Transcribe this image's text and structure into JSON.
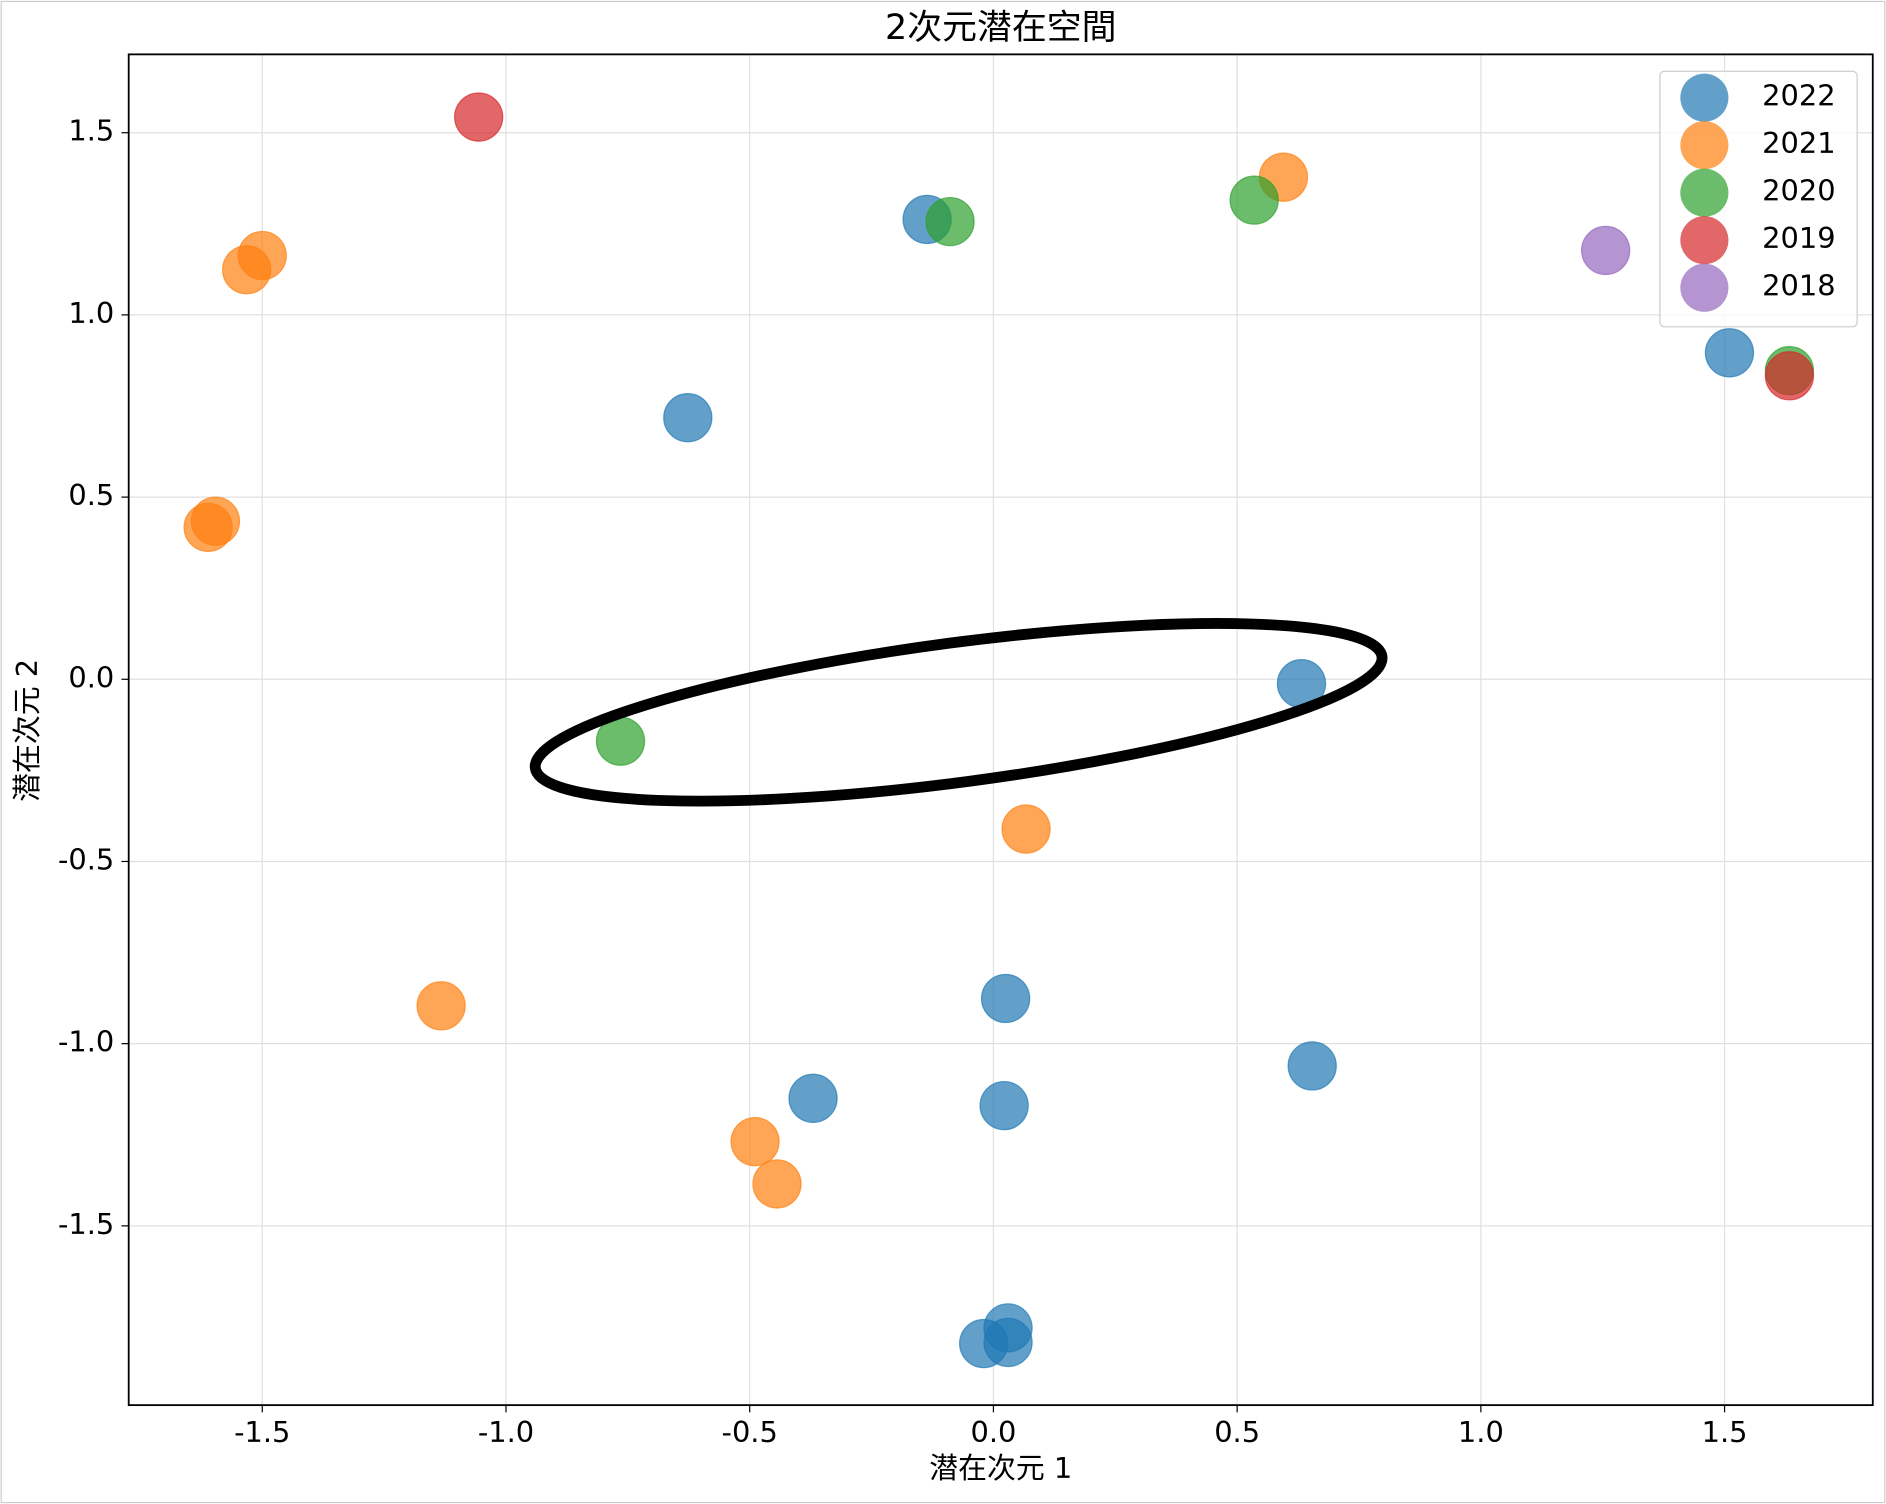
{
  "chart_data": {
    "type": "scatter",
    "title": "2次元潜在空間",
    "x_label": "潜在次元 1",
    "y_label": "潜在次元 2",
    "xlim": [
      -1.774,
      1.804
    ],
    "ylim": [
      -1.992,
      1.715
    ],
    "xticks": [
      -1.5,
      {
        "value": -1,
        "label": "-1.0"
      },
      -0.5,
      {
        "value": 0,
        "label": "0.0"
      },
      0.5,
      {
        "value": 1,
        "label": "1.0"
      },
      1.5
    ],
    "yticks": [
      -1.5,
      {
        "value": -1,
        "label": "-1.0"
      },
      -0.5,
      {
        "value": 0,
        "label": "0.0"
      },
      0.5,
      {
        "value": 1,
        "label": "1.0"
      },
      1.5
    ],
    "grid": true,
    "legend": "upper right",
    "series": [
      {
        "name": "2022",
        "color": "#1f77b4",
        "x": [
          -0.136,
          -0.627,
          0.632,
          1.51,
          0.025,
          0.654,
          -0.37,
          0.022,
          0.03,
          -0.02,
          0.03
        ],
        "y": [
          1.262,
          0.718,
          -0.012,
          0.896,
          -0.876,
          -1.061,
          -1.15,
          -1.17,
          -1.78,
          -1.823,
          -1.82
        ]
      },
      {
        "name": "2021",
        "color": "#ff7f0e",
        "x": [
          -1.5,
          -1.532,
          0.595,
          -1.596,
          -1.611,
          0.067,
          -1.133,
          -0.489,
          -0.444
        ],
        "y": [
          1.163,
          1.124,
          1.378,
          0.434,
          0.417,
          -0.411,
          -0.896,
          -1.269,
          -1.385
        ]
      },
      {
        "name": "2020",
        "color": "#2ca02c",
        "x": [
          -0.089,
          0.535,
          -0.765,
          1.633
        ],
        "y": [
          1.256,
          1.315,
          -0.17,
          0.847
        ]
      },
      {
        "name": "2019",
        "color": "#d62728",
        "x": [
          -1.056,
          1.633
        ],
        "y": [
          1.543,
          0.833
        ]
      },
      {
        "name": "2018",
        "color": "#9467bd",
        "x": [
          1.256
        ],
        "y": [
          1.177
        ]
      }
    ]
  }
}
